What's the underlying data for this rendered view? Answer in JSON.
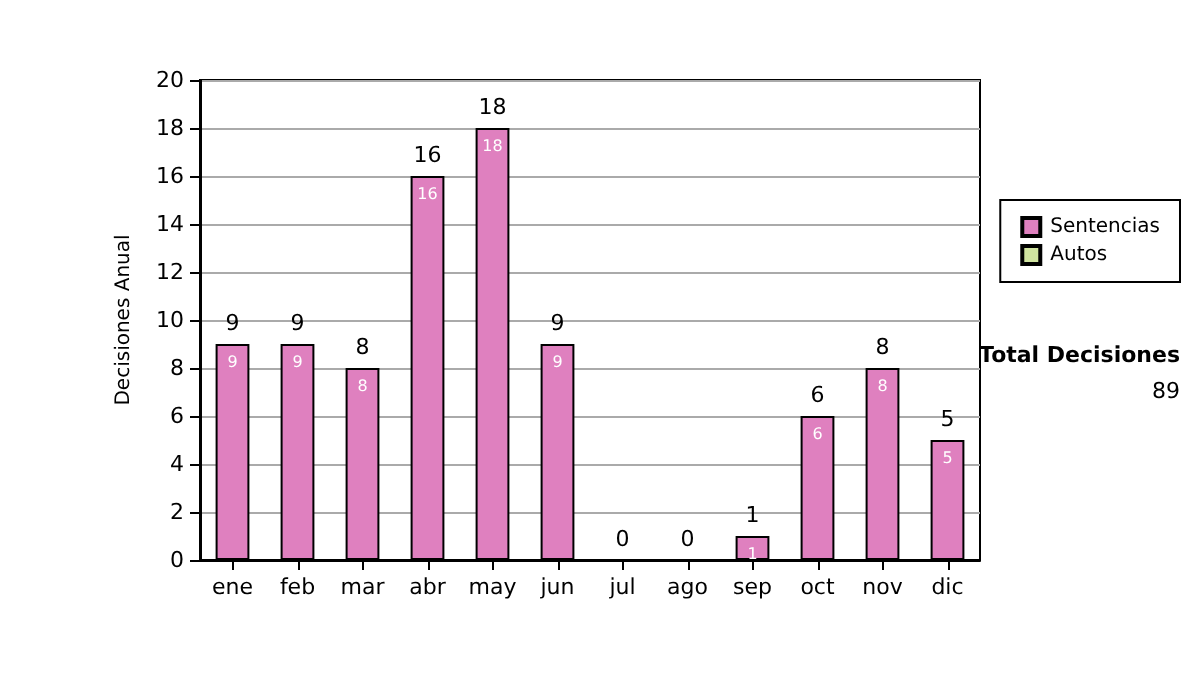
{
  "chart_data": {
    "type": "bar",
    "stacked": true,
    "ylabel": "Decisiones Anual",
    "categories": [
      "ene",
      "feb",
      "mar",
      "abr",
      "may",
      "jun",
      "jul",
      "ago",
      "sep",
      "oct",
      "nov",
      "dic"
    ],
    "series": [
      {
        "name": "Sentencias",
        "color": "#df80bf",
        "values": [
          9,
          9,
          8,
          16,
          18,
          9,
          0,
          0,
          1,
          6,
          8,
          5
        ],
        "value_labels": [
          "9",
          "9",
          "8",
          "16",
          "18",
          "9",
          null,
          null,
          "1",
          "6",
          "8",
          "5"
        ]
      },
      {
        "name": "Autos",
        "color": "#d0e4a0",
        "values": [
          0,
          0,
          0,
          0,
          0,
          0,
          0,
          0,
          0,
          0,
          0,
          0
        ]
      }
    ],
    "totals": [
      "9",
      "9",
      "8",
      "16",
      "18",
      "9",
      "0",
      "0",
      "1",
      "6",
      "8",
      "5"
    ],
    "ylim": [
      0,
      20
    ],
    "yticks": [
      0,
      2,
      4,
      6,
      8,
      10,
      12,
      14,
      16,
      18,
      20
    ],
    "grid": "y",
    "legend": "right",
    "annotations": [
      "Total Decisiones",
      "89"
    ]
  }
}
